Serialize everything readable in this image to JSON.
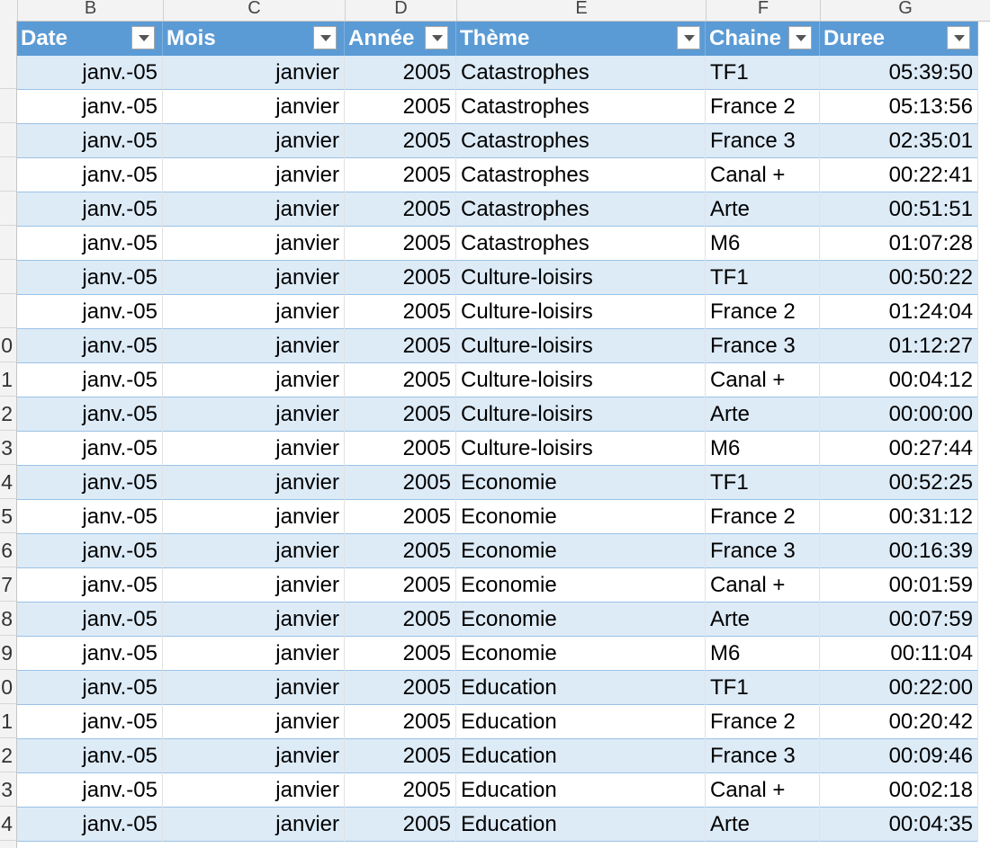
{
  "column_letters": [
    "B",
    "C",
    "D",
    "E",
    "F",
    "G"
  ],
  "row_numbers": [
    "",
    "",
    "",
    "",
    "",
    "",
    "",
    "",
    "0",
    "1",
    "2",
    "3",
    "4",
    "5",
    "6",
    "7",
    "8",
    "9",
    "0",
    "1",
    "2",
    "3",
    "4"
  ],
  "table": {
    "headers": [
      "Date",
      "Mois",
      "Année",
      "Thème",
      "Chaine",
      "Duree"
    ],
    "rows": [
      [
        "janv.-05",
        "janvier",
        "2005",
        "Catastrophes",
        "TF1",
        "05:39:50"
      ],
      [
        "janv.-05",
        "janvier",
        "2005",
        "Catastrophes",
        "France 2",
        "05:13:56"
      ],
      [
        "janv.-05",
        "janvier",
        "2005",
        "Catastrophes",
        "France 3",
        "02:35:01"
      ],
      [
        "janv.-05",
        "janvier",
        "2005",
        "Catastrophes",
        "Canal +",
        "00:22:41"
      ],
      [
        "janv.-05",
        "janvier",
        "2005",
        "Catastrophes",
        "Arte",
        "00:51:51"
      ],
      [
        "janv.-05",
        "janvier",
        "2005",
        "Catastrophes",
        "M6",
        "01:07:28"
      ],
      [
        "janv.-05",
        "janvier",
        "2005",
        "Culture-loisirs",
        "TF1",
        "00:50:22"
      ],
      [
        "janv.-05",
        "janvier",
        "2005",
        "Culture-loisirs",
        "France 2",
        "01:24:04"
      ],
      [
        "janv.-05",
        "janvier",
        "2005",
        "Culture-loisirs",
        "France 3",
        "01:12:27"
      ],
      [
        "janv.-05",
        "janvier",
        "2005",
        "Culture-loisirs",
        "Canal +",
        "00:04:12"
      ],
      [
        "janv.-05",
        "janvier",
        "2005",
        "Culture-loisirs",
        "Arte",
        "00:00:00"
      ],
      [
        "janv.-05",
        "janvier",
        "2005",
        "Culture-loisirs",
        "M6",
        "00:27:44"
      ],
      [
        "janv.-05",
        "janvier",
        "2005",
        "Economie",
        "TF1",
        "00:52:25"
      ],
      [
        "janv.-05",
        "janvier",
        "2005",
        "Economie",
        "France 2",
        "00:31:12"
      ],
      [
        "janv.-05",
        "janvier",
        "2005",
        "Economie",
        "France 3",
        "00:16:39"
      ],
      [
        "janv.-05",
        "janvier",
        "2005",
        "Economie",
        "Canal +",
        "00:01:59"
      ],
      [
        "janv.-05",
        "janvier",
        "2005",
        "Economie",
        "Arte",
        "00:07:59"
      ],
      [
        "janv.-05",
        "janvier",
        "2005",
        "Economie",
        "M6",
        "00:11:04"
      ],
      [
        "janv.-05",
        "janvier",
        "2005",
        "Education",
        "TF1",
        "00:22:00"
      ],
      [
        "janv.-05",
        "janvier",
        "2005",
        "Education",
        "France 2",
        "00:20:42"
      ],
      [
        "janv.-05",
        "janvier",
        "2005",
        "Education",
        "France 3",
        "00:09:46"
      ],
      [
        "janv.-05",
        "janvier",
        "2005",
        "Education",
        "Canal +",
        "00:02:18"
      ],
      [
        "janv.-05",
        "janvier",
        "2005",
        "Education",
        "Arte",
        "00:04:35"
      ]
    ]
  },
  "colors": {
    "header_fill": "#5b9bd5",
    "band_fill": "#ddebf7",
    "header_text": "#ffffff"
  },
  "icons": {
    "filter": "dropdown-arrow-icon"
  }
}
